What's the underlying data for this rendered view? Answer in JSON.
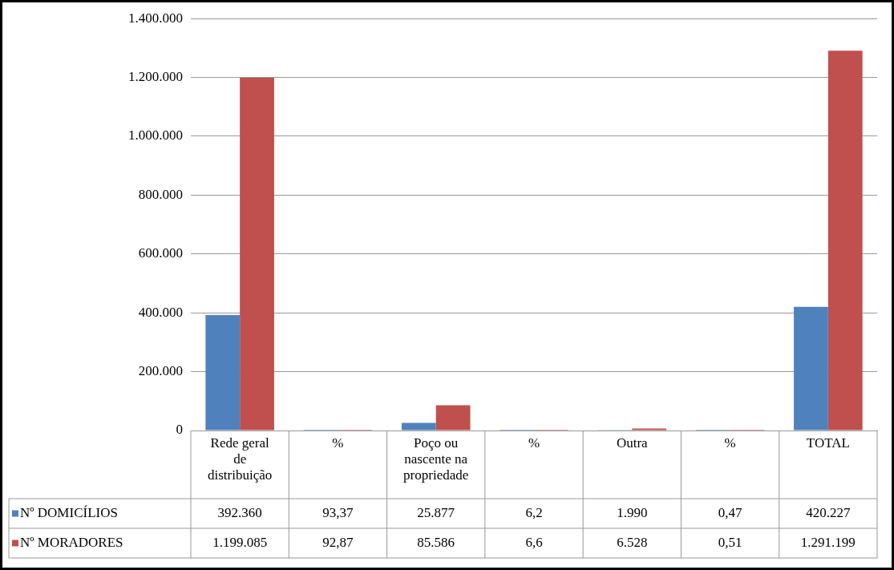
{
  "chart_data": {
    "type": "bar",
    "categories": [
      "Rede geral de distribuição",
      "%",
      "Poço ou nascente na propriedade",
      "%",
      "Outra",
      "%",
      "TOTAL"
    ],
    "series": [
      {
        "name": "Nº DOMICÍLIOS",
        "color": "#4f81bd",
        "values": [
          392360,
          93.37,
          25877,
          6.2,
          1990,
          0.47,
          420227
        ],
        "value_labels": [
          "392.360",
          "93,37",
          "25.877",
          "6,2",
          "1.990",
          "0,47",
          "420.227"
        ]
      },
      {
        "name": "Nº MORADORES",
        "color": "#c0504d",
        "values": [
          1199085,
          92.87,
          85586,
          6.6,
          6528,
          0.51,
          1291199
        ],
        "value_labels": [
          "1.199.085",
          "92,87",
          "85.586",
          "6,6",
          "6.528",
          "0,51",
          "1.291.199"
        ]
      }
    ],
    "ylim": [
      0,
      1400000
    ],
    "yticks": [
      {
        "value": 0,
        "label": "0"
      },
      {
        "value": 200000,
        "label": "200.000"
      },
      {
        "value": 400000,
        "label": "400.000"
      },
      {
        "value": 600000,
        "label": "600.000"
      },
      {
        "value": 800000,
        "label": "800.000"
      },
      {
        "value": 1000000,
        "label": "1.000.000"
      },
      {
        "value": 1200000,
        "label": "1.200.000"
      },
      {
        "value": 1400000,
        "label": "1.400.000"
      }
    ],
    "grid": "y",
    "legend": "bottom left"
  }
}
